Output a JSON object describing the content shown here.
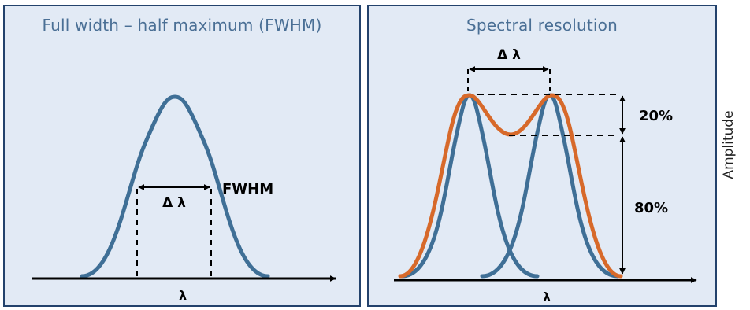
{
  "left_panel": {
    "title": "Full width – half maximum (FWHM)",
    "delta_label": "Δ λ",
    "fwhm_label": "FWHM",
    "axis_label": "λ"
  },
  "right_panel": {
    "title": "Spectral resolution",
    "delta_label": "Δ λ",
    "dip_label": "20%",
    "rest_label": "80%",
    "axis_label": "λ"
  },
  "side_label": "Amplitude",
  "colors": {
    "panel_bg": "#e2eaf5",
    "panel_border": "#23426c",
    "title": "#4a6f95",
    "curve_blue": "#3f6f96",
    "curve_orange": "#d7692a",
    "axis": "#000000"
  }
}
